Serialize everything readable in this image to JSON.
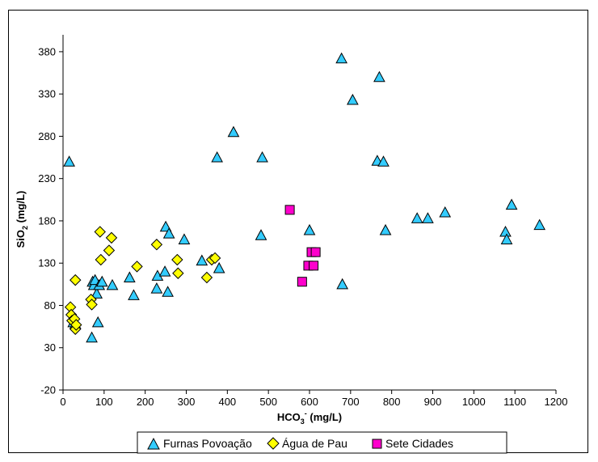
{
  "chart_data": {
    "type": "scatter",
    "xlabel": {
      "main": "HCO",
      "sub": "3",
      "sup": "-",
      "unit": " (mg/L)"
    },
    "ylabel": {
      "main": "SiO",
      "sub": "2",
      "unit": " (mg/L)"
    },
    "xlim": [
      0,
      1200
    ],
    "ylim": [
      -20,
      400
    ],
    "x_ticks": [
      0,
      100,
      200,
      300,
      400,
      500,
      600,
      700,
      800,
      900,
      1000,
      1100,
      1200
    ],
    "y_ticks": [
      -20,
      30,
      80,
      130,
      180,
      230,
      280,
      330,
      380
    ],
    "grid": false,
    "legend_position": "bottom",
    "series": [
      {
        "name": "Furnas Povoação",
        "marker": "triangle",
        "color": "#33CCFF",
        "points": [
          [
            15,
            250
          ],
          [
            25,
            60
          ],
          [
            30,
            58
          ],
          [
            70,
            42
          ],
          [
            72,
            108
          ],
          [
            75,
            104
          ],
          [
            78,
            110
          ],
          [
            82,
            94
          ],
          [
            85,
            60
          ],
          [
            88,
            104
          ],
          [
            95,
            108
          ],
          [
            120,
            104
          ],
          [
            162,
            113
          ],
          [
            172,
            92
          ],
          [
            228,
            100
          ],
          [
            230,
            115
          ],
          [
            248,
            120
          ],
          [
            250,
            173
          ],
          [
            255,
            96
          ],
          [
            258,
            165
          ],
          [
            295,
            158
          ],
          [
            338,
            133
          ],
          [
            375,
            255
          ],
          [
            380,
            124
          ],
          [
            415,
            285
          ],
          [
            482,
            163
          ],
          [
            485,
            255
          ],
          [
            600,
            169
          ],
          [
            680,
            105
          ],
          [
            678,
            372
          ],
          [
            705,
            323
          ],
          [
            765,
            251
          ],
          [
            770,
            350
          ],
          [
            780,
            250
          ],
          [
            785,
            169
          ],
          [
            862,
            183
          ],
          [
            888,
            183
          ],
          [
            930,
            190
          ],
          [
            1077,
            167
          ],
          [
            1080,
            158
          ],
          [
            1092,
            199
          ],
          [
            1160,
            175
          ]
        ]
      },
      {
        "name": "Água de Pau",
        "marker": "diamond",
        "color": "#FFFF00",
        "points": [
          [
            18,
            78
          ],
          [
            20,
            69
          ],
          [
            22,
            62
          ],
          [
            28,
            64
          ],
          [
            30,
            52
          ],
          [
            32,
            57
          ],
          [
            30,
            110
          ],
          [
            68,
            87
          ],
          [
            70,
            81
          ],
          [
            90,
            167
          ],
          [
            92,
            134
          ],
          [
            112,
            145
          ],
          [
            118,
            160
          ],
          [
            180,
            126
          ],
          [
            228,
            152
          ],
          [
            278,
            134
          ],
          [
            280,
            118
          ],
          [
            350,
            113
          ],
          [
            362,
            134
          ],
          [
            370,
            136
          ]
        ]
      },
      {
        "name": "Sete Cidades",
        "marker": "square",
        "color": "#FF00CC",
        "points": [
          [
            552,
            193
          ],
          [
            582,
            108
          ],
          [
            597,
            127
          ],
          [
            605,
            143
          ],
          [
            610,
            127
          ],
          [
            615,
            143
          ]
        ]
      }
    ]
  }
}
